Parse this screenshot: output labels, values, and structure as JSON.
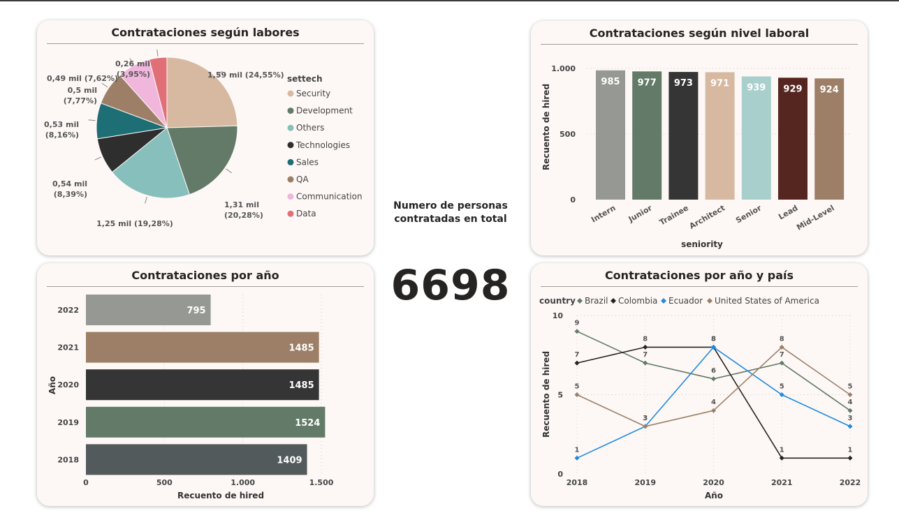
{
  "kpi": {
    "label_line1": "Numero de personas",
    "label_line2": "contratadas en total",
    "value": "6698"
  },
  "chart_data": [
    {
      "id": "pie",
      "type": "pie",
      "title": "Contrataciones según labores",
      "legend_title": "settech",
      "legend_position": "right",
      "slices": [
        {
          "name": "Security",
          "value": 1.59,
          "label": "1,59 mil (24,55%)",
          "color": "#d6b9a0"
        },
        {
          "name": "Development",
          "value": 1.31,
          "label": "1,31 mil (20,28%)",
          "color": "#627a67"
        },
        {
          "name": "Others",
          "value": 1.25,
          "label": "1,25 mil (19,28%)",
          "color": "#86bfbb"
        },
        {
          "name": "Technologies",
          "value": 0.54,
          "label": "0,54 mil (8,39%)",
          "color": "#2e2e2e"
        },
        {
          "name": "Sales",
          "value": 0.53,
          "label": "0,53 mil (8,16%)",
          "color": "#1d6e75"
        },
        {
          "name": "QA",
          "value": 0.5,
          "label": "0,5 mil (7,77%)",
          "color": "#9c7f66"
        },
        {
          "name": "Communication",
          "value": 0.49,
          "label": "0,49 mil (7,62%)",
          "color": "#f0b6dc"
        },
        {
          "name": "Data",
          "value": 0.26,
          "label": "0,26 mil (3,95%)",
          "color": "#e06f78"
        }
      ]
    },
    {
      "id": "seniority",
      "type": "bar",
      "title": "Contrataciones según nivel laboral",
      "xlabel": "seniority",
      "ylabel": "Recuento de hired",
      "ylim": [
        0,
        1000
      ],
      "yticks": [
        {
          "v": 0,
          "t": "0"
        },
        {
          "v": 500,
          "t": "500"
        },
        {
          "v": 1000,
          "t": "1.000"
        }
      ],
      "categories": [
        "Intern",
        "Junior",
        "Trainee",
        "Architect",
        "Senior",
        "Lead",
        "Mid-Level"
      ],
      "values": [
        985,
        977,
        973,
        971,
        939,
        929,
        924
      ],
      "colors": [
        "#969893",
        "#627a67",
        "#353535",
        "#d6b9a0",
        "#a9cfcc",
        "#55261f",
        "#9c7f66"
      ],
      "grid": true
    },
    {
      "id": "year",
      "type": "bar",
      "orientation": "horizontal",
      "title": "Contrataciones por año",
      "xlabel": "Recuento de hired",
      "ylabel": "Año",
      "xlim": [
        0,
        1500
      ],
      "xticks": [
        {
          "v": 0,
          "t": "0"
        },
        {
          "v": 500,
          "t": "500"
        },
        {
          "v": 1000,
          "t": "1.000"
        },
        {
          "v": 1500,
          "t": "1.500"
        }
      ],
      "categories": [
        "2022",
        "2021",
        "2020",
        "2019",
        "2018"
      ],
      "values": [
        795,
        1485,
        1485,
        1524,
        1409
      ],
      "colors": [
        "#969893",
        "#9c7f66",
        "#353535",
        "#627a67",
        "#535a5b"
      ],
      "grid": true
    },
    {
      "id": "country",
      "type": "line",
      "title": "Contrataciones por año y país",
      "legend_title": "country",
      "legend_position": "top-left",
      "xlabel": "Año",
      "ylabel": "Recuento de hired",
      "ylim": [
        0,
        10
      ],
      "yticks": [
        {
          "v": 0,
          "t": "0"
        },
        {
          "v": 5,
          "t": "5"
        },
        {
          "v": 10,
          "t": "10"
        }
      ],
      "x": [
        "2018",
        "2019",
        "2020",
        "2021",
        "2022"
      ],
      "series": [
        {
          "name": "Brazil",
          "values": [
            9,
            7,
            6,
            7,
            4
          ],
          "color": "#627a67"
        },
        {
          "name": "Colombia",
          "values": [
            7,
            8,
            8,
            1,
            1
          ],
          "color": "#252423"
        },
        {
          "name": "Ecuador",
          "values": [
            1,
            3,
            8,
            5,
            3
          ],
          "color": "#1f8ae0"
        },
        {
          "name": "United States of America",
          "values": [
            5,
            3,
            4,
            8,
            5
          ],
          "color": "#9c7f66"
        }
      ],
      "grid": true
    }
  ]
}
